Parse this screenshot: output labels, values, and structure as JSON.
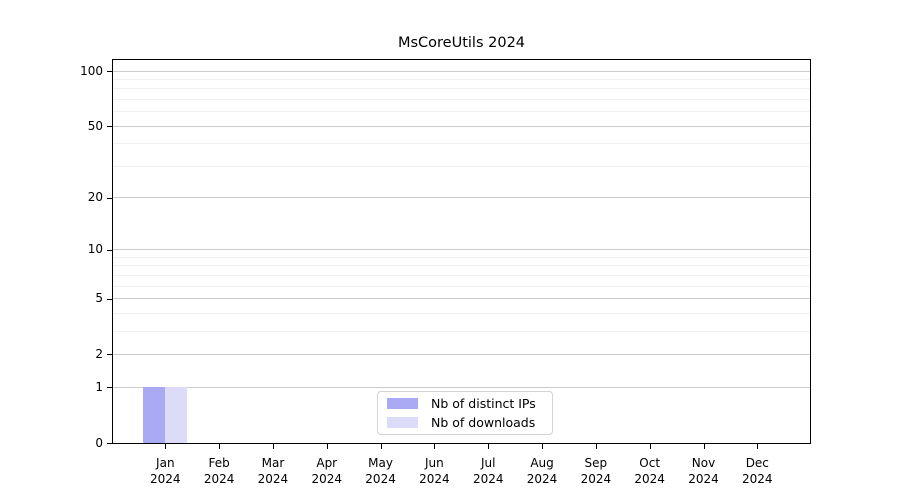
{
  "chart_data": {
    "type": "bar",
    "title": "MsCoreUtils 2024",
    "categories": [
      {
        "month": "Jan",
        "year": "2024"
      },
      {
        "month": "Feb",
        "year": "2024"
      },
      {
        "month": "Mar",
        "year": "2024"
      },
      {
        "month": "Apr",
        "year": "2024"
      },
      {
        "month": "May",
        "year": "2024"
      },
      {
        "month": "Jun",
        "year": "2024"
      },
      {
        "month": "Jul",
        "year": "2024"
      },
      {
        "month": "Aug",
        "year": "2024"
      },
      {
        "month": "Sep",
        "year": "2024"
      },
      {
        "month": "Oct",
        "year": "2024"
      },
      {
        "month": "Nov",
        "year": "2024"
      },
      {
        "month": "Dec",
        "year": "2024"
      }
    ],
    "series": [
      {
        "name": "Nb of distinct IPs",
        "color": "#aaaaf4",
        "values": [
          1,
          0,
          0,
          0,
          0,
          0,
          0,
          0,
          0,
          0,
          0,
          0
        ]
      },
      {
        "name": "Nb of downloads",
        "color": "#dcdcf8",
        "values": [
          1,
          0,
          0,
          0,
          0,
          0,
          0,
          0,
          0,
          0,
          0,
          0
        ]
      }
    ],
    "y_axis": {
      "scale": "log1p",
      "tick_values": [
        0,
        1,
        2,
        5,
        10,
        20,
        50,
        100
      ],
      "minor_gridline_values": [
        3,
        4,
        6,
        7,
        8,
        9,
        30,
        40,
        60,
        70,
        80,
        90
      ],
      "ylim": [
        0,
        115
      ]
    },
    "legend": {
      "position": "bottom-center"
    },
    "grid": true,
    "colors": {
      "axis": "#000000",
      "major_grid": "#cccccc",
      "minor_grid": "#efefef",
      "text": "#000000",
      "legend_border": "#d3d3d3"
    }
  }
}
